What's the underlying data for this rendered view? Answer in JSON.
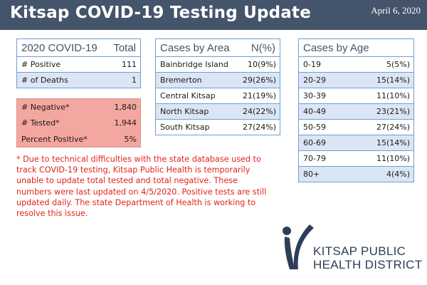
{
  "header": {
    "title": "Kitsap COVID-19 Testing Update",
    "date": "April 6, 2020",
    "background_color": "#44546a"
  },
  "summary": {
    "title": "2020 COVID-19",
    "total_label": "Total",
    "rows": [
      {
        "label": "# Positive",
        "value": "111"
      },
      {
        "label": "# of Deaths",
        "value": "1"
      }
    ]
  },
  "testing": {
    "rows": [
      {
        "label": "# Negative*",
        "value": "1,840"
      },
      {
        "label": "# Tested*",
        "value": "1,944"
      },
      {
        "label": "Percent Positive*",
        "value": "5%"
      }
    ],
    "background_color": "#f4a6a0"
  },
  "cases_by_area": {
    "title": "Cases by Area",
    "value_header": "N(%)",
    "rows": [
      {
        "label": "Bainbridge Island",
        "value": "10(9%)"
      },
      {
        "label": "Bremerton",
        "value": "29(26%)"
      },
      {
        "label": "Central Kitsap",
        "value": "21(19%)"
      },
      {
        "label": "North Kitsap",
        "value": "24(22%)"
      },
      {
        "label": "South Kitsap",
        "value": "27(24%)"
      }
    ]
  },
  "cases_by_age": {
    "title": "Cases by Age",
    "rows": [
      {
        "label": "0-19",
        "value": "5(5%)"
      },
      {
        "label": "20-29",
        "value": "15(14%)"
      },
      {
        "label": "30-39",
        "value": "11(10%)"
      },
      {
        "label": "40-49",
        "value": "23(21%)"
      },
      {
        "label": "50-59",
        "value": "27(24%)"
      },
      {
        "label": "60-69",
        "value": "15(14%)"
      },
      {
        "label": "70-79",
        "value": "11(10%)"
      },
      {
        "label": "80+",
        "value": "4(4%)"
      }
    ]
  },
  "note": "* Due to technical difficulties with the state database used to track COVID-19 testing, Kitsap Public Health is temporarily unable to update total tested and total negative. These numbers were last updated on 4/5/2020. Positive tests are still updated daily. The state Department of Health is working to resolve this issue.",
  "logo": {
    "line1": "KITSAP PUBLIC",
    "line2": "HEALTH DISTRICT",
    "icon": "kitsap-health-logo-icon"
  },
  "colors": {
    "table_border": "#6f9ed4",
    "table_header_text": "#44546a",
    "row_alt": "#dbe6f4",
    "note_text": "#e1241c",
    "logo_color": "#2d3e58"
  }
}
